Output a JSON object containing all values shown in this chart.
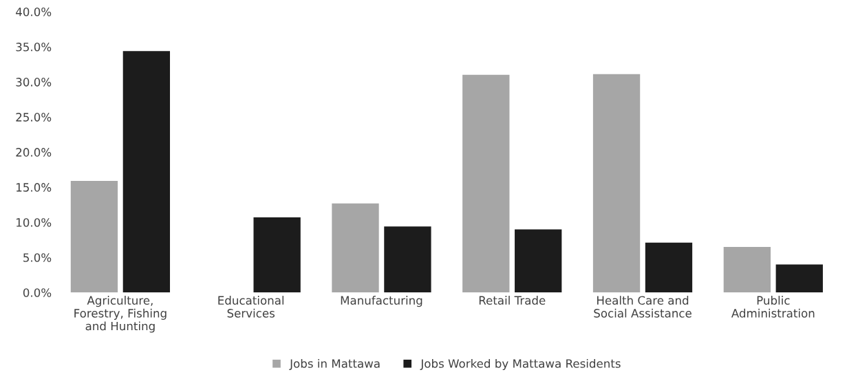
{
  "chart_data": {
    "type": "bar",
    "categories": [
      "Agriculture,\nForestry, Fishing\nand Hunting",
      "Educational\nServices",
      "Manufacturing",
      "Retail Trade",
      "Health Care and\nSocial Assistance",
      "Public\nAdministration"
    ],
    "series": [
      {
        "name": "Jobs in Mattawa",
        "color": "#a6a6a6",
        "values": [
          15.9,
          0,
          12.7,
          31.0,
          31.1,
          6.5
        ]
      },
      {
        "name": "Jobs Worked by Mattawa Residents",
        "color": "#1c1c1c",
        "values": [
          34.4,
          10.7,
          9.4,
          9.0,
          7.1,
          4.0
        ]
      }
    ],
    "ylim": [
      0,
      40
    ],
    "yticks": [
      {
        "value": 0,
        "label": "0.0%"
      },
      {
        "value": 5,
        "label": "5.0%"
      },
      {
        "value": 10,
        "label": "10.0%"
      },
      {
        "value": 15,
        "label": "15.0%"
      },
      {
        "value": 20,
        "label": "20.0%"
      },
      {
        "value": 25,
        "label": "25.0%"
      },
      {
        "value": 30,
        "label": "30.0%"
      },
      {
        "value": 35,
        "label": "35.0%"
      },
      {
        "value": 40,
        "label": "40.0%"
      }
    ],
    "grid": false,
    "legend": "bottom"
  }
}
